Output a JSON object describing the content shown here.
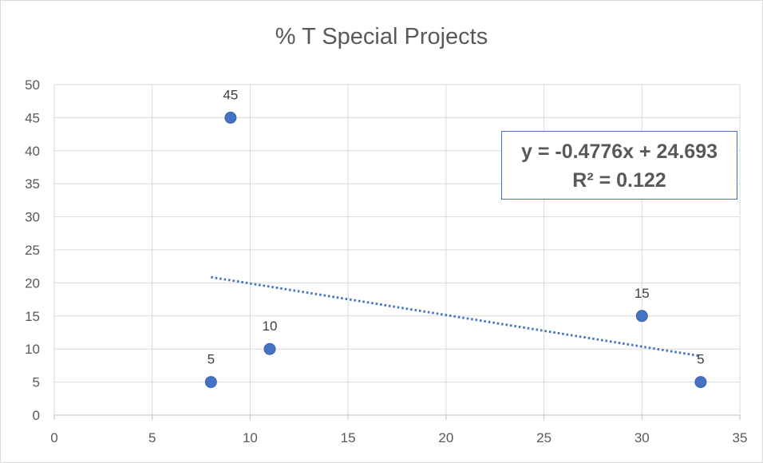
{
  "chart_data": {
    "type": "scatter",
    "title": "% T Special Projects",
    "xlabel": "",
    "ylabel": "",
    "xlim": [
      0,
      35
    ],
    "ylim": [
      0,
      50
    ],
    "x_ticks": [
      0,
      5,
      10,
      15,
      20,
      25,
      30,
      35
    ],
    "y_ticks": [
      0,
      5,
      10,
      15,
      20,
      25,
      30,
      35,
      40,
      45,
      50
    ],
    "grid": true,
    "legend": "none",
    "series": [
      {
        "color": "#4472c4",
        "points": [
          {
            "x": 8,
            "y": 5,
            "label": "5"
          },
          {
            "x": 9,
            "y": 45,
            "label": "45"
          },
          {
            "x": 11,
            "y": 10,
            "label": "10"
          },
          {
            "x": 30,
            "y": 15,
            "label": "15"
          },
          {
            "x": 33,
            "y": 5,
            "label": "5"
          }
        ]
      }
    ],
    "trendline": {
      "type": "linear",
      "style": "dotted",
      "color": "#4472c4",
      "slope": -0.4776,
      "intercept": 24.693,
      "x_range": [
        8,
        33
      ],
      "equation": "y = -0.4776x + 24.693",
      "r_squared": "R² = 0.122"
    }
  }
}
